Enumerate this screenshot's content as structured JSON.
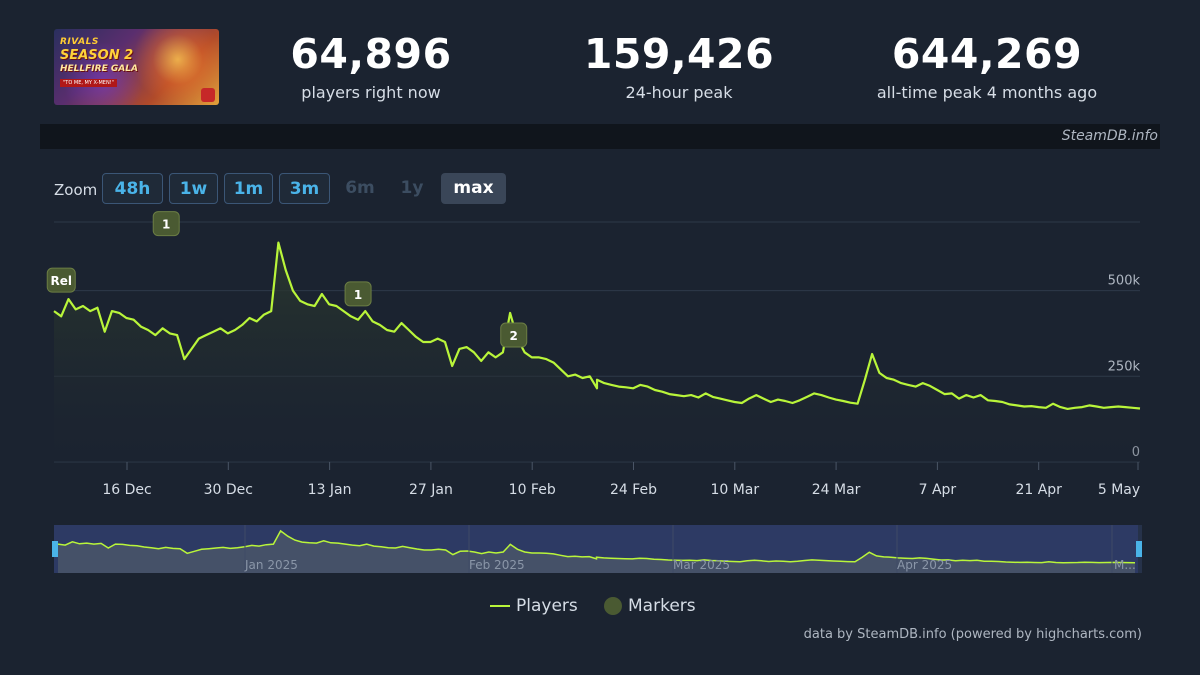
{
  "header": {
    "capsule": {
      "logo_top": "RIVALS",
      "logo_main": "SEASON 2",
      "logo_sub": "HELLFIRE GALA",
      "logo_tag": "\"TO ME, MY X-MEN!\""
    },
    "stats": [
      {
        "value": "64,896",
        "label": "players right now"
      },
      {
        "value": "159,426",
        "label": "24-hour peak"
      },
      {
        "value": "644,269",
        "label": "all-time peak 4 months ago"
      }
    ]
  },
  "credit_strip": "SteamDB.info",
  "zoom": {
    "label": "Zoom",
    "buttons": [
      {
        "label": "48h",
        "state": "on"
      },
      {
        "label": "1w",
        "state": "on"
      },
      {
        "label": "1m",
        "state": "on"
      },
      {
        "label": "3m",
        "state": "on"
      },
      {
        "label": "6m",
        "state": "off"
      },
      {
        "label": "1y",
        "state": "off"
      },
      {
        "label": "max",
        "state": "selected"
      }
    ]
  },
  "chart_data": {
    "type": "line",
    "x_ticks": [
      "16 Dec",
      "30 Dec",
      "13 Jan",
      "27 Jan",
      "10 Feb",
      "24 Feb",
      "10 Mar",
      "24 Mar",
      "7 Apr",
      "21 Apr",
      "5 May"
    ],
    "y_ticks": [
      "0",
      "250k",
      "500k"
    ],
    "ylim": [
      0,
      700000
    ],
    "grid": true,
    "line_color": "#b9f53a",
    "series": [
      {
        "name": "Players",
        "x": [
          0,
          2,
          4,
          6,
          8,
          10,
          12,
          14,
          16,
          18,
          20,
          22,
          24,
          26,
          28,
          30,
          32,
          34,
          36,
          38,
          40,
          42,
          44,
          46,
          48,
          50,
          52,
          54,
          56,
          58,
          60,
          62,
          64,
          66,
          68,
          70,
          72,
          74,
          76,
          78,
          80,
          82,
          84,
          86,
          88,
          90,
          92,
          94,
          96,
          98,
          100,
          102,
          104,
          106,
          108,
          110,
          112,
          114,
          116,
          118,
          120,
          122,
          124,
          126,
          128,
          130,
          132,
          134,
          136,
          138,
          140,
          142,
          144,
          146,
          148,
          150
        ],
        "values": [
          440000,
          425000,
          475000,
          445000,
          455000,
          440000,
          450000,
          380000,
          440000,
          435000,
          420000,
          415000,
          395000,
          385000,
          370000,
          390000,
          375000,
          370000,
          300000,
          330000,
          360000,
          370000,
          380000,
          390000,
          375000,
          385000,
          400000,
          420000,
          410000,
          430000,
          440000,
          640000,
          560000,
          500000,
          470000,
          460000,
          455000,
          490000,
          460000,
          455000,
          440000,
          425000,
          415000,
          440000,
          410000,
          400000,
          385000,
          380000,
          405000,
          385000,
          365000,
          350000,
          350000,
          360000,
          350000,
          280000,
          330000,
          335000,
          320000,
          295000,
          320000,
          305000,
          320000,
          435000,
          360000,
          320000,
          305000,
          305000,
          300000,
          290000,
          270000,
          250000,
          255000,
          245000,
          250000,
          215000
        ],
        "markers": [
          {
            "label": "Rel",
            "x": 2,
            "value": 475000
          },
          {
            "label": "1",
            "x": 31,
            "value": 640000
          },
          {
            "label": "1",
            "x": 84,
            "value": 435000
          },
          {
            "label": "2",
            "x": 127,
            "value": 315000
          }
        ]
      },
      {
        "name": "Players (tail)",
        "x": [
          150,
          152,
          154,
          156,
          158,
          160,
          162,
          164,
          166,
          168,
          170,
          172,
          174,
          176,
          178,
          180,
          182,
          184,
          186,
          188,
          190,
          192,
          194,
          196,
          198,
          200,
          202,
          204,
          206,
          208,
          210,
          212,
          214,
          216,
          218,
          220,
          222,
          224,
          226,
          228,
          230,
          232,
          234,
          236,
          238,
          240,
          242,
          244,
          246,
          248,
          250,
          252,
          254,
          256,
          258,
          260,
          262,
          264,
          266,
          268,
          270,
          272,
          274,
          276,
          278,
          280,
          282,
          284,
          286,
          288,
          290,
          292,
          294,
          296,
          298,
          300
        ],
        "values": [
          240000,
          230000,
          225000,
          220000,
          218000,
          215000,
          225000,
          220000,
          210000,
          205000,
          198000,
          195000,
          192000,
          195000,
          188000,
          200000,
          190000,
          185000,
          180000,
          175000,
          172000,
          185000,
          195000,
          185000,
          175000,
          182000,
          178000,
          172000,
          180000,
          190000,
          200000,
          195000,
          188000,
          182000,
          178000,
          173000,
          170000,
          240000,
          315000,
          260000,
          245000,
          240000,
          230000,
          225000,
          220000,
          230000,
          222000,
          210000,
          198000,
          200000,
          185000,
          195000,
          188000,
          195000,
          180000,
          178000,
          175000,
          168000,
          165000,
          162000,
          163000,
          160000,
          158000,
          170000,
          160000,
          155000,
          158000,
          160000,
          165000,
          162000,
          158000,
          160000,
          162000,
          160000,
          158000,
          156000
        ]
      }
    ]
  },
  "navigator": {
    "labels": [
      "Jan 2025",
      "Feb 2025",
      "Mar 2025",
      "Apr 2025",
      "M..."
    ]
  },
  "legend": {
    "players": "Players",
    "markers": "Markers"
  },
  "footer": "data by SteamDB.info (powered by highcharts.com)"
}
